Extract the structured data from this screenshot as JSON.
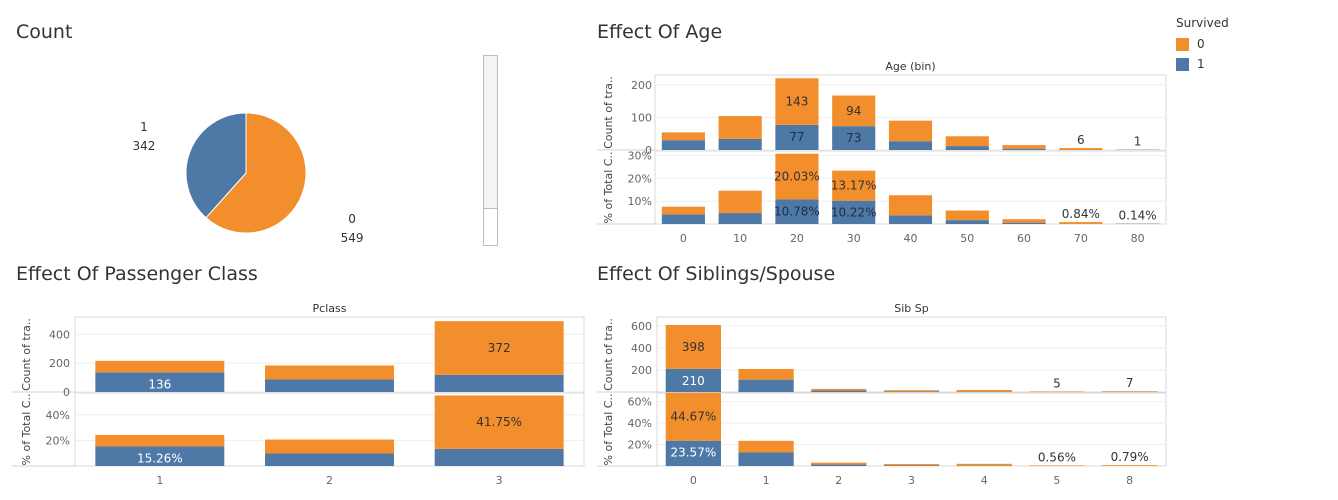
{
  "colors": {
    "survived_0": "#f28e2b",
    "survived_1": "#4e79a7"
  },
  "legend": {
    "title": "Survived",
    "items": [
      "0",
      "1"
    ]
  },
  "titles": {
    "count": "Count",
    "age": "Effect Of Age",
    "pclass": "Effect Of Passenger Class",
    "sibsp": "Effect Of Siblings/Spouse"
  },
  "chart_data": [
    {
      "id": "count",
      "type": "pie",
      "title": "Count",
      "slices": [
        {
          "name": "0",
          "value": 549,
          "color": "#f28e2b"
        },
        {
          "name": "1",
          "value": 342,
          "color": "#4e79a7"
        }
      ]
    },
    {
      "id": "age",
      "type": "bar",
      "title": "Effect Of Age",
      "header": "Age (bin)",
      "categories": [
        "0",
        "10",
        "20",
        "30",
        "40",
        "50",
        "60",
        "70",
        "80"
      ],
      "panels": [
        {
          "ylabel": "Count of tra..",
          "yticks": [
            0,
            100,
            200
          ],
          "ylim": [
            0,
            230
          ],
          "series": [
            {
              "name": "1",
              "values": [
                30,
                34,
                77,
                73,
                27,
                12,
                4,
                0,
                1
              ]
            },
            {
              "name": "0",
              "values": [
                24,
                70,
                143,
                94,
                63,
                30,
                11,
                6,
                0
              ]
            }
          ],
          "labels": {
            "1": [
              "",
              "",
              "77",
              "73",
              "",
              "",
              "",
              "",
              ""
            ],
            "0": [
              "",
              "",
              "143",
              "94",
              "",
              "",
              "",
              "6",
              ""
            ],
            "total": [
              "",
              "",
              "",
              "",
              "",
              "",
              "",
              "",
              "1"
            ]
          }
        },
        {
          "ylabel": "% of Total C..",
          "yticks": [
            "10%",
            "20%",
            "30%"
          ],
          "ytick_values": [
            10,
            20,
            30
          ],
          "ylim": [
            0,
            32
          ],
          "series": [
            {
              "name": "1",
              "values": [
                4.2,
                4.8,
                10.78,
                10.22,
                3.8,
                1.7,
                0.6,
                0,
                0.14
              ]
            },
            {
              "name": "0",
              "values": [
                3.4,
                9.8,
                20.03,
                13.17,
                8.8,
                4.2,
                1.5,
                0.84,
                0
              ]
            }
          ],
          "labels": {
            "1": [
              "",
              "",
              "10.78%",
              "10.22%",
              "",
              "",
              "",
              "",
              ""
            ],
            "0": [
              "",
              "",
              "20.03%",
              "13.17%",
              "",
              "",
              "",
              "0.84%",
              ""
            ],
            "total": [
              "",
              "",
              "",
              "",
              "",
              "",
              "",
              "",
              "0.14%"
            ]
          }
        }
      ]
    },
    {
      "id": "pclass",
      "type": "bar",
      "title": "Effect Of Passenger Class",
      "header": "Pclass",
      "categories": [
        "1",
        "2",
        "3"
      ],
      "panels": [
        {
          "ylabel": "Count of tra..",
          "yticks": [
            0,
            200,
            400
          ],
          "ylim": [
            0,
            520
          ],
          "series": [
            {
              "name": "1",
              "values": [
                136,
                87,
                119
              ]
            },
            {
              "name": "0",
              "values": [
                80,
                97,
                372
              ]
            }
          ],
          "labels": {
            "1": [
              "136",
              "",
              ""
            ],
            "0": [
              "",
              "",
              "372"
            ],
            "total": [
              "",
              "",
              ""
            ]
          }
        },
        {
          "ylabel": "% of Total C..",
          "yticks": [
            "20%",
            "40%"
          ],
          "ytick_values": [
            20,
            40
          ],
          "ylim": [
            0,
            57
          ],
          "series": [
            {
              "name": "1",
              "values": [
                15.26,
                9.76,
                13.36
              ]
            },
            {
              "name": "0",
              "values": [
                8.98,
                10.89,
                41.75
              ]
            }
          ],
          "labels": {
            "1": [
              "15.26%",
              "",
              ""
            ],
            "0": [
              "",
              "",
              "41.75%"
            ],
            "total": [
              "",
              "",
              ""
            ]
          }
        }
      ]
    },
    {
      "id": "sibsp",
      "type": "bar",
      "title": "Effect Of Siblings/Spouse",
      "header": "Sib Sp",
      "categories": [
        "0",
        "1",
        "2",
        "3",
        "4",
        "5",
        "8"
      ],
      "panels": [
        {
          "ylabel": "Count of tra..",
          "yticks": [
            200,
            400,
            600
          ],
          "ylim": [
            0,
            680
          ],
          "series": [
            {
              "name": "1",
              "values": [
                210,
                112,
                13,
                4,
                3,
                0,
                0
              ]
            },
            {
              "name": "0",
              "values": [
                398,
                97,
                15,
                12,
                15,
                5,
                7
              ]
            }
          ],
          "labels": {
            "1": [
              "210",
              "",
              "",
              "",
              "",
              "",
              ""
            ],
            "0": [
              "398",
              "",
              "",
              "",
              "",
              "",
              ""
            ],
            "total": [
              "",
              "",
              "",
              "",
              "",
              "5",
              "7"
            ]
          }
        },
        {
          "ylabel": "% of Total C..",
          "yticks": [
            "20%",
            "40%",
            "60%"
          ],
          "ytick_values": [
            20,
            40,
            60
          ],
          "ylim": [
            0,
            68
          ],
          "series": [
            {
              "name": "1",
              "values": [
                23.57,
                12.57,
                1.46,
                0.45,
                0.34,
                0,
                0
              ]
            },
            {
              "name": "0",
              "values": [
                44.67,
                10.89,
                1.68,
                1.35,
                1.68,
                0.56,
                0.79
              ]
            }
          ],
          "labels": {
            "1": [
              "23.57%",
              "",
              "",
              "",
              "",
              "",
              ""
            ],
            "0": [
              "44.67%",
              "",
              "",
              "",
              "",
              "",
              ""
            ],
            "total": [
              "",
              "",
              "",
              "",
              "",
              "0.56%",
              "0.79%"
            ]
          }
        }
      ]
    }
  ]
}
